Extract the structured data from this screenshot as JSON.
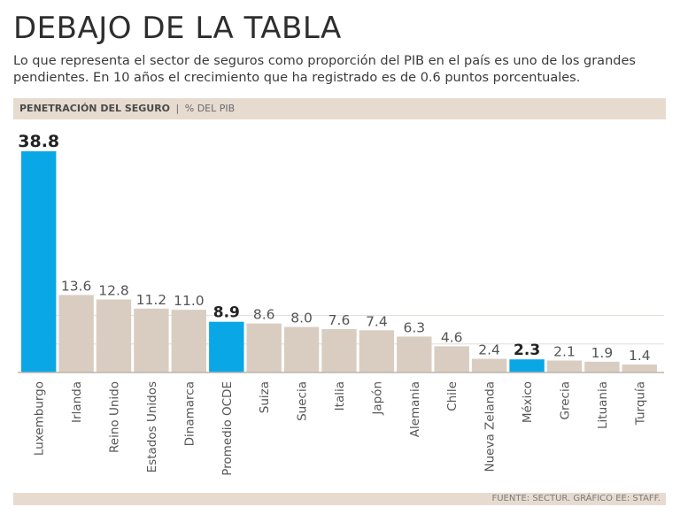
{
  "title": "DEBAJO DE LA TABLA",
  "subtitle": {
    "line1": "Lo que representa el sector de seguros como proporción del PIB en el país es uno de los grandes",
    "line2": "pendientes. En 10 años el crecimiento que ha registrado es de 0.6 puntos porcentuales."
  },
  "section": {
    "title": "PENETRACIÓN DEL SEGURO",
    "separator": "|",
    "unit": "% DEL PIB"
  },
  "footer": {
    "source": "FUENTE: SECTUR. GRÁFICO EE: STAFF."
  },
  "colors": {
    "highlight": "#0aa7e6",
    "bar": "#d9cdc1",
    "band": "#e7dbd0",
    "grid": "#e4ddd6",
    "axis": "#bdb3aa"
  },
  "chart_data": {
    "type": "bar",
    "title": "PENETRACIÓN DEL SEGURO",
    "ylabel": "% DEL PIB",
    "xlabel": "",
    "ylim": [
      0,
      40
    ],
    "grid": true,
    "categories": [
      "Luxemburgo",
      "Irlanda",
      "Reino Unido",
      "Estados Unidos",
      "Dinamarca",
      "Promedio OCDE",
      "Suiza",
      "Suecia",
      "Italia",
      "Japón",
      "Alemania",
      "Chile",
      "Nueva Zelanda",
      "México",
      "Grecia",
      "Lituania",
      "Turquía"
    ],
    "values": [
      38.8,
      13.6,
      12.8,
      11.2,
      11.0,
      8.9,
      8.6,
      8.0,
      7.6,
      7.4,
      6.3,
      4.6,
      2.4,
      2.3,
      2.1,
      1.9,
      1.4
    ],
    "value_labels": [
      "38.8",
      "13.6",
      "12.8",
      "11.2",
      "11.0",
      "8.9",
      "8.6",
      "8.0",
      "7.6",
      "7.4",
      "6.3",
      "4.6",
      "2.4",
      "2.3",
      "2.1",
      "1.9",
      "1.4"
    ],
    "highlighted": [
      "Luxemburgo",
      "Promedio OCDE",
      "México"
    ]
  }
}
